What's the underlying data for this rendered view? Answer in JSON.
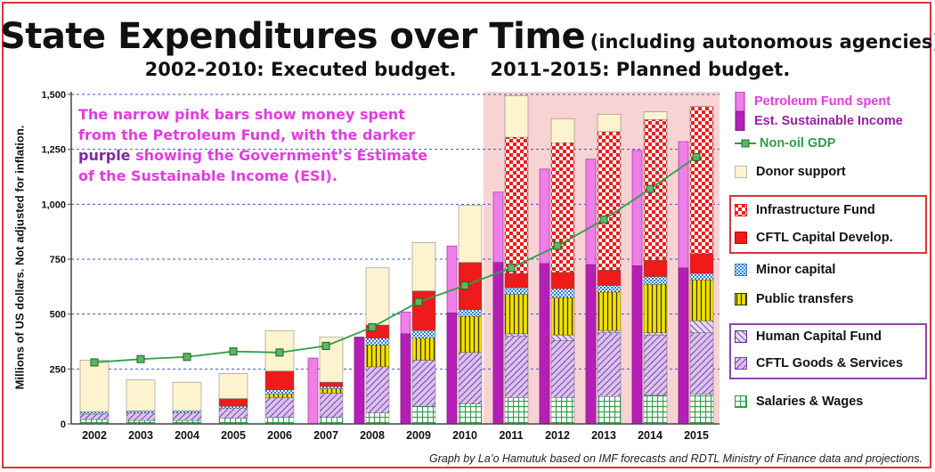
{
  "chart_data": {
    "type": "bar",
    "title": "State Expenditures over Time",
    "title_suffix": "(including autonomous agencies)",
    "subtitle_left": "2002-2010: Executed budget.",
    "subtitle_right": "2011-2015: Planned budget.",
    "ylabel": "Millions of US dollars. Not adjusted for inflation.",
    "ylim": [
      0,
      1500
    ],
    "yticks": [
      "0",
      "250",
      "500",
      "750",
      "1,000",
      "1,250",
      "1,500"
    ],
    "categories": [
      "2002",
      "2003",
      "2004",
      "2005",
      "2006",
      "2007",
      "2008",
      "2009",
      "2010",
      "2011",
      "2012",
      "2013",
      "2014",
      "2015"
    ],
    "planned_shading_from": "2011",
    "stacked_series": [
      {
        "name": "Salaries & Wages",
        "color": "#2e9e48",
        "values": [
          20,
          15,
          15,
          25,
          30,
          30,
          50,
          80,
          90,
          120,
          120,
          125,
          130,
          135
        ]
      },
      {
        "name": "CFTL Goods & Services",
        "color": "#8e44ad",
        "values": [
          25,
          35,
          35,
          45,
          90,
          110,
          210,
          210,
          235,
          280,
          260,
          290,
          275,
          280
        ]
      },
      {
        "name": "Human Capital Fund",
        "color": "#7a3ea8",
        "values": [
          0,
          0,
          0,
          0,
          0,
          0,
          0,
          0,
          0,
          10,
          25,
          10,
          10,
          55
        ]
      },
      {
        "name": "Public transfers",
        "color": "#e8d000",
        "values": [
          0,
          0,
          0,
          0,
          15,
          20,
          100,
          100,
          165,
          180,
          170,
          175,
          220,
          185
        ]
      },
      {
        "name": "Minor capital",
        "color": "#2a7fd0",
        "values": [
          10,
          10,
          10,
          10,
          20,
          10,
          30,
          35,
          30,
          30,
          40,
          30,
          35,
          30
        ]
      },
      {
        "name": "CFTL Capital Develop.",
        "color": "#ef1b1b",
        "values": [
          0,
          0,
          0,
          35,
          85,
          20,
          60,
          180,
          215,
          65,
          75,
          70,
          75,
          90
        ]
      },
      {
        "name": "Infrastructure Fund",
        "color": "#ef1b1b",
        "values": [
          0,
          0,
          0,
          0,
          0,
          0,
          0,
          0,
          0,
          620,
          590,
          630,
          640,
          670
        ]
      },
      {
        "name": "Donor support",
        "color": "#fdf3cf",
        "values": [
          235,
          140,
          130,
          115,
          185,
          205,
          260,
          220,
          260,
          190,
          110,
          80,
          35,
          0
        ]
      }
    ],
    "petroleum_fund_spent": [
      0,
      0,
      0,
      0,
      0,
      300,
      395,
      510,
      810,
      1055,
      1160,
      1205,
      1245,
      1285
    ],
    "est_sustainable_income": [
      0,
      0,
      0,
      0,
      0,
      0,
      395,
      410,
      505,
      735,
      730,
      725,
      720,
      710
    ],
    "non_oil_gdp": [
      280,
      295,
      305,
      330,
      325,
      355,
      440,
      555,
      630,
      710,
      810,
      930,
      1070,
      1215
    ],
    "annotation": [
      "The narrow pink bars show money spent",
      "from the Petroleum Fund, with the ",
      "darker",
      "purple",
      " showing the Government’s Estimate",
      "of the Sustainable Income (ESI)."
    ],
    "legend": {
      "petroleum": "Petroleum Fund spent",
      "esi": "Est. Sustainable Income",
      "gdp": "Non-oil GDP",
      "donor": "Donor support",
      "infra": "Infrastructure Fund",
      "capdev": "CFTL Capital Develop.",
      "minor": "Minor capital",
      "transfers": "Public transfers",
      "hcf": "Human Capital Fund",
      "goods": "CFTL Goods & Services",
      "salaries": "Salaries & Wages"
    },
    "source": "Graph by La’o Hamutuk based on IMF forecasts and RDTL Ministry of Finance data and projections.",
    "colors": {
      "petroleum": "#ee7fe6",
      "esi": "#b51fb5",
      "gdp_line": "#2e9e48",
      "gdp_marker": "#5cb860",
      "planned_shading": "#f8d3d3",
      "frame": "#d8343c"
    }
  }
}
